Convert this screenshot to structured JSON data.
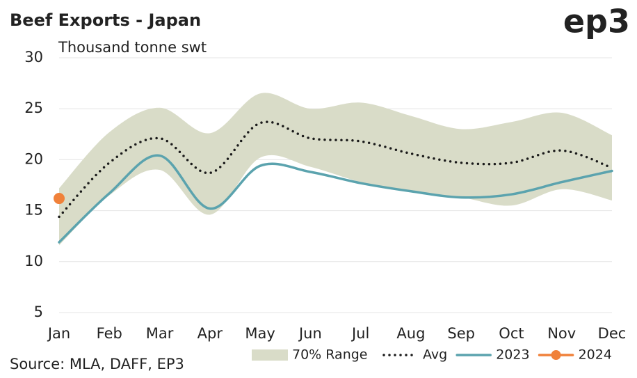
{
  "chart_data": {
    "type": "line",
    "title": "Beef Exports - Japan",
    "subtitle": "Thousand tonne swt",
    "logo": "ep3",
    "source": "Source: MLA, DAFF, EP3",
    "categories": [
      "Jan",
      "Feb",
      "Mar",
      "Apr",
      "May",
      "Jun",
      "Jul",
      "Aug",
      "Sep",
      "Oct",
      "Nov",
      "Dec"
    ],
    "ylim": [
      5,
      30
    ],
    "yticks": [
      5,
      10,
      15,
      20,
      25,
      30
    ],
    "grid": true,
    "range": {
      "name": "70% Range",
      "color": "#d9dcc8",
      "high": [
        17.2,
        22.7,
        25.1,
        22.6,
        26.5,
        25.0,
        25.6,
        24.3,
        23.0,
        23.7,
        24.6,
        22.4
      ],
      "low": [
        11.6,
        16.5,
        19.0,
        14.6,
        20.2,
        19.3,
        17.8,
        16.8,
        16.3,
        15.5,
        17.1,
        16.0
      ]
    },
    "series": [
      {
        "name": "Avg",
        "color": "#1a1a1a",
        "style": "dotted",
        "values": [
          14.4,
          19.7,
          22.1,
          18.7,
          23.6,
          22.1,
          21.8,
          20.6,
          19.7,
          19.7,
          20.9,
          19.2
        ]
      },
      {
        "name": "2023",
        "color": "#5ba3ae",
        "style": "solid",
        "values": [
          11.9,
          16.7,
          20.4,
          15.2,
          19.4,
          18.8,
          17.7,
          16.9,
          16.3,
          16.6,
          17.8,
          18.9
        ]
      },
      {
        "name": "2024",
        "color": "#f0813a",
        "style": "marker",
        "values": [
          16.2,
          null,
          null,
          null,
          null,
          null,
          null,
          null,
          null,
          null,
          null,
          null
        ]
      }
    ]
  }
}
